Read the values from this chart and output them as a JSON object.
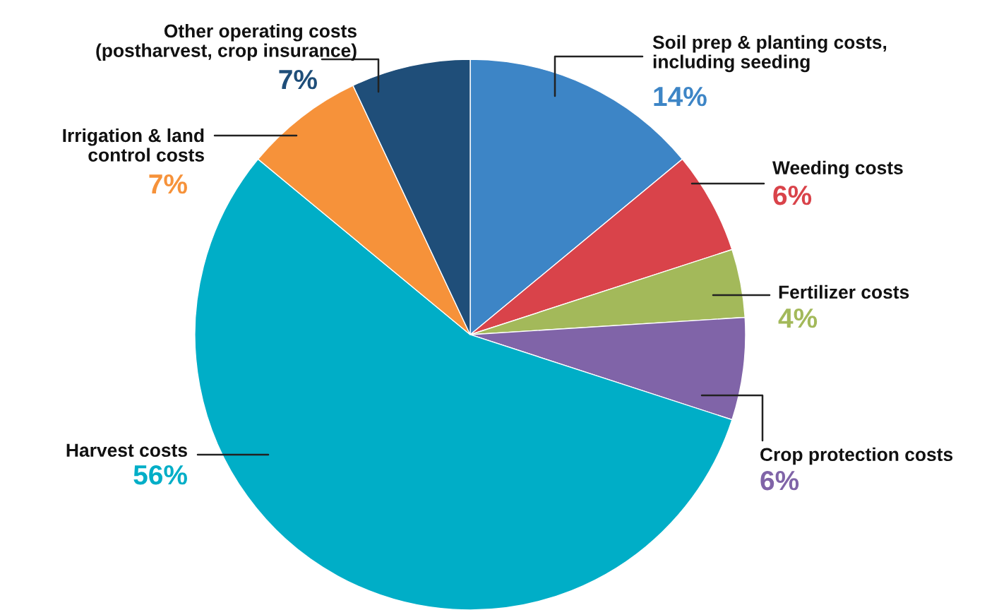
{
  "chart_data": {
    "type": "pie",
    "categories": [
      "Soil prep & planting costs,\nincluding seeding",
      "Weeding costs",
      "Fertilizer costs",
      "Crop protection costs",
      "Harvest costs",
      "Irrigation & land\ncontrol costs",
      "Other operating costs\n(postharvest, crop insurance)"
    ],
    "values": [
      14,
      6,
      4,
      6,
      56,
      7,
      7
    ],
    "colors": [
      "#3d85c6",
      "#d9434a",
      "#a3b95a",
      "#8064a8",
      "#00aec7",
      "#f6923a",
      "#1f4e79"
    ],
    "value_labels": [
      "14%",
      "6%",
      "4%",
      "6%",
      "56%",
      "7%",
      "7%"
    ],
    "legend": false
  }
}
